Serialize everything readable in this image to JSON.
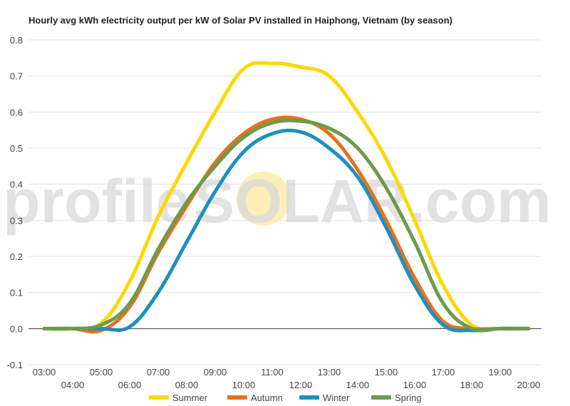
{
  "chart_data": {
    "type": "line",
    "title": "Hourly avg kWh electricity output per kW of Solar PV installed in Haiphong, Vietnam (by season)",
    "xlabel": "",
    "ylabel": "",
    "ylim": [
      -0.1,
      0.8
    ],
    "yticks": [
      "-0.1",
      "0.0",
      "0.1",
      "0.2",
      "0.3",
      "0.4",
      "0.5",
      "0.6",
      "0.7",
      "0.8"
    ],
    "x": [
      "03:00",
      "04:00",
      "05:00",
      "06:00",
      "07:00",
      "08:00",
      "09:00",
      "10:00",
      "11:00",
      "12:00",
      "13:00",
      "14:00",
      "15:00",
      "16:00",
      "17:00",
      "18:00",
      "19:00",
      "20:00"
    ],
    "grid": true,
    "legend_position": "bottom",
    "series": [
      {
        "name": "Summer",
        "color": "#ffd700",
        "values": [
          0.0,
          0.0,
          0.015,
          0.13,
          0.31,
          0.46,
          0.6,
          0.72,
          0.735,
          0.725,
          0.7,
          0.6,
          0.47,
          0.3,
          0.12,
          0.01,
          0.0,
          0.0
        ]
      },
      {
        "name": "Autumn",
        "color": "#e8711a",
        "values": [
          0.0,
          0.0,
          -0.005,
          0.06,
          0.21,
          0.34,
          0.46,
          0.54,
          0.58,
          0.58,
          0.54,
          0.44,
          0.3,
          0.14,
          0.02,
          0.0,
          0.0,
          0.0
        ]
      },
      {
        "name": "Winter",
        "color": "#1f8fc0",
        "values": [
          0.0,
          0.0,
          0.0,
          0.005,
          0.1,
          0.24,
          0.38,
          0.49,
          0.54,
          0.545,
          0.5,
          0.42,
          0.28,
          0.12,
          0.01,
          -0.005,
          0.0,
          0.0
        ]
      },
      {
        "name": "Spring",
        "color": "#6e9a4c",
        "values": [
          0.0,
          0.0,
          0.01,
          0.07,
          0.22,
          0.35,
          0.45,
          0.53,
          0.57,
          0.575,
          0.555,
          0.5,
          0.39,
          0.24,
          0.07,
          0.0,
          0.0,
          0.0
        ]
      }
    ]
  },
  "watermark": {
    "text_left": "profile",
    "text_right": "SOLAR.com",
    "sun_color": "#fde9a8"
  }
}
